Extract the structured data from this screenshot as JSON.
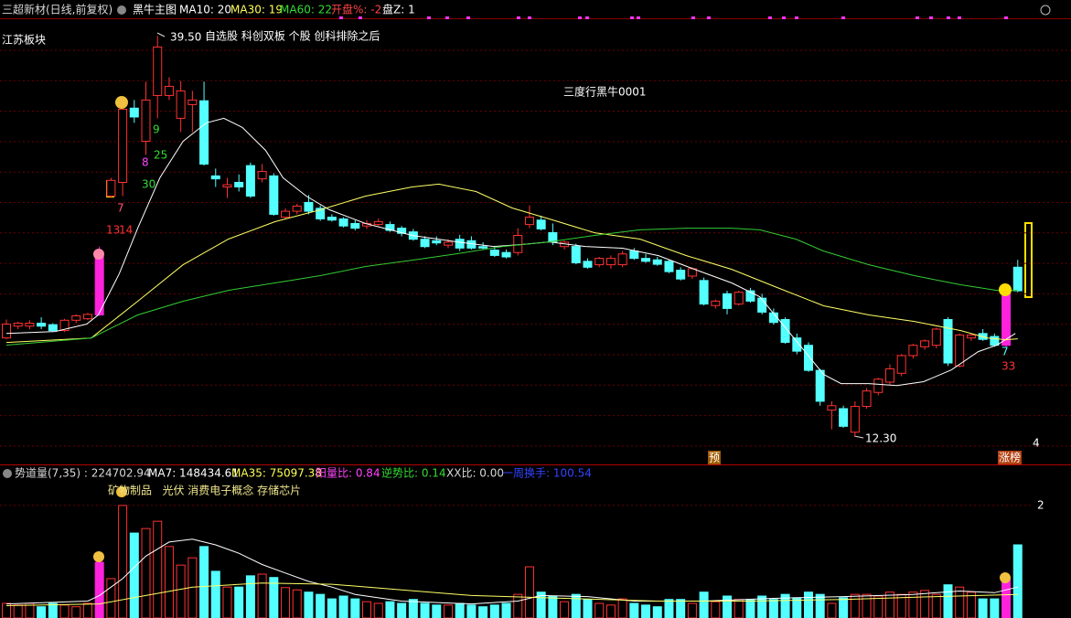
{
  "chart_data": [
    {
      "type": "candlestick",
      "header": [
        {
          "text": "三超新材(日线,前复权)",
          "color": "#d8d8d8"
        },
        {
          "text": "黑牛主图",
          "color": "#ffffff"
        },
        {
          "text": "MA10: 20",
          "color": "#ffffff"
        },
        {
          "text": "MA30: 19",
          "color": "#ffff55"
        },
        {
          "text": "MA60: 22",
          "color": "#33dd33"
        },
        {
          "text": "开盘%: -2",
          "color": "#ff4444"
        },
        {
          "text": "盘Z: 1",
          "color": "#ffffff"
        }
      ],
      "annotations": [
        "39.50",
        "自选股 科创双板 个股 创科排除之后",
        "三度行黑牛0001",
        "江苏板块",
        "7",
        "13",
        "14",
        "8",
        "9",
        "25",
        "30",
        "7",
        "33",
        "4",
        "12.30",
        "预",
        "涨榜"
      ],
      "ylim": [
        10.6,
        40.7
      ],
      "up_color": "#ff3232",
      "down_color": "#54ffff",
      "limit_up_color": "#ff22dd",
      "limit_up": [
        8,
        86
      ],
      "open": [
        19.0,
        19.8,
        19.8,
        20.0,
        19.9,
        19.5,
        20.2,
        20.3,
        20.56,
        28.63,
        29.56,
        34.6,
        32.35,
        35.46,
        35.46,
        33.91,
        34.84,
        35.1,
        30.0,
        29.25,
        29.56,
        30.7,
        29.8,
        30.0,
        27.2,
        27.6,
        28.2,
        27.8,
        27.2,
        27.08,
        26.77,
        26.6,
        26.7,
        26.7,
        26.45,
        26.2,
        25.7,
        25.6,
        25.3,
        25.7,
        25.6,
        25.2,
        24.96,
        24.8,
        24.8,
        26.7,
        27.0,
        26.15,
        25.2,
        25.21,
        24.2,
        23.97,
        23.97,
        23.97,
        24.9,
        24.4,
        24.3,
        24.2,
        23.6,
        23.2,
        22.9,
        21.2,
        22.0,
        21.3,
        22.2,
        21.7,
        20.7,
        20.25,
        19.0,
        18.5,
        16.8,
        14.1,
        14.2,
        12.6,
        14.35,
        15.3,
        16.0,
        16.6,
        17.8,
        18.4,
        18.5,
        20.25,
        17.1,
        19.0,
        19.3,
        19.1,
        18.5,
        23.8
      ],
      "high": [
        20.25,
        20.1,
        20.2,
        20.4,
        20.0,
        20.3,
        20.6,
        20.7,
        25.2,
        29.87,
        34.84,
        35.15,
        36.39,
        39.5,
        36.7,
        36.45,
        35.77,
        36.4,
        30.5,
        29.87,
        30.1,
        30.9,
        30.8,
        30.18,
        27.8,
        28.1,
        28.7,
        28.0,
        27.4,
        27.2,
        27.0,
        27.0,
        27.1,
        26.9,
        26.6,
        26.4,
        25.9,
        25.9,
        25.7,
        26.0,
        25.9,
        25.5,
        25.2,
        25.0,
        26.45,
        28.0,
        27.3,
        26.77,
        25.6,
        25.4,
        24.4,
        24.5,
        24.6,
        24.9,
        25.1,
        24.7,
        24.5,
        24.3,
        23.8,
        23.8,
        23.1,
        21.6,
        22.2,
        22.2,
        22.4,
        22.0,
        21.0,
        20.4,
        19.3,
        18.7,
        16.9,
        14.7,
        14.4,
        14.7,
        15.6,
        16.3,
        17.2,
        17.9,
        18.6,
        18.9,
        19.7,
        20.4,
        19.3,
        19.3,
        19.6,
        19.3,
        22.1,
        24.3
      ],
      "low": [
        18.9,
        19.6,
        19.6,
        19.6,
        19.4,
        19.4,
        20.0,
        20.2,
        20.5,
        28.5,
        28.63,
        33.6,
        31.42,
        33.91,
        35.15,
        32.98,
        32.98,
        30.7,
        29.25,
        28.5,
        28.94,
        28.5,
        29.56,
        27.3,
        27.08,
        27.4,
        27.39,
        26.95,
        26.9,
        26.5,
        26.3,
        26.4,
        26.6,
        26.2,
        25.9,
        25.6,
        25.1,
        25.3,
        25.1,
        24.9,
        25.0,
        25.0,
        24.5,
        24.4,
        24.6,
        26.45,
        26.3,
        25.3,
        25.0,
        24.0,
        23.7,
        23.8,
        23.7,
        23.8,
        24.3,
        24.1,
        23.9,
        23.4,
        22.9,
        23.0,
        21.2,
        21.0,
        20.6,
        21.2,
        21.4,
        20.6,
        19.9,
        18.6,
        17.9,
        16.7,
        14.4,
        12.8,
        12.9,
        12.3,
        14.2,
        15.1,
        15.8,
        16.4,
        17.6,
        18.2,
        18.3,
        17.1,
        17.0,
        18.8,
        18.8,
        18.4,
        18.4,
        22.1
      ],
      "close": [
        19.94,
        20.0,
        20.0,
        19.8,
        19.5,
        20.2,
        20.5,
        20.6,
        24.5,
        29.7,
        34.53,
        34.0,
        35.15,
        38.75,
        36.08,
        35.77,
        35.15,
        30.8,
        29.8,
        29.4,
        29.25,
        28.63,
        30.3,
        27.39,
        27.6,
        27.95,
        27.6,
        27.08,
        27.0,
        26.6,
        26.45,
        26.77,
        26.9,
        26.3,
        26.1,
        25.7,
        25.2,
        25.45,
        25.5,
        25.1,
        25.1,
        25.1,
        24.6,
        24.5,
        25.96,
        27.2,
        26.4,
        25.52,
        25.5,
        24.1,
        23.8,
        24.4,
        24.4,
        24.7,
        24.4,
        24.2,
        24.0,
        23.5,
        23.0,
        23.7,
        21.3,
        21.5,
        21.0,
        22.1,
        21.5,
        20.75,
        20.05,
        18.7,
        18.1,
        16.8,
        14.7,
        14.4,
        13.0,
        14.35,
        15.4,
        16.2,
        16.9,
        17.8,
        18.5,
        18.8,
        19.6,
        17.3,
        19.2,
        19.2,
        18.9,
        18.5,
        22.0,
        22.2
      ],
      "lines": [
        {
          "color": "#ffffff",
          "x": [
            0,
            4.2,
            6.9,
            7.9,
            9.7,
            11.3,
            13.2,
            15.2,
            17.2,
            18.7,
            20.3,
            22.3,
            23.8,
            25.8,
            27.8,
            30.9,
            34.9,
            38.8,
            41.9,
            44.3,
            46.7,
            49.8,
            53,
            56.1,
            59.2,
            62.4,
            64.8,
            67.1,
            68.7,
            70.3,
            71.8,
            74.2,
            76.6,
            78.9,
            81.3,
            83.6,
            85.2,
            86.8
          ],
          "values": [
            19.31,
            19.44,
            19.94,
            20.56,
            23.35,
            26.45,
            29.87,
            32.35,
            33.6,
            33.91,
            33.29,
            31.73,
            29.87,
            28.63,
            27.7,
            26.77,
            25.96,
            25.52,
            25.21,
            25.34,
            25.52,
            25.21,
            25.09,
            24.59,
            23.66,
            22.73,
            21.8,
            19.62,
            18.07,
            16.52,
            15.9,
            15.9,
            15.77,
            16.03,
            16.83,
            18.07,
            18.51,
            19.31
          ]
        },
        {
          "color": "#ffff66",
          "x": [
            0,
            7.3,
            11.3,
            15.2,
            19.1,
            23.1,
            27,
            30.9,
            34.9,
            37.2,
            40.4,
            43.5,
            46.7,
            50.6,
            54.5,
            58.5,
            62.4,
            66.3,
            70.3,
            74.2,
            78.1,
            82.1,
            84.4,
            86,
            87
          ],
          "values": [
            18.69,
            19.0,
            21.49,
            23.97,
            25.71,
            26.89,
            27.7,
            28.63,
            29.25,
            29.44,
            28.94,
            27.82,
            27.08,
            26.14,
            25.71,
            24.59,
            23.66,
            22.42,
            21.18,
            20.56,
            20.12,
            19.5,
            19.0,
            18.88,
            18.94
          ]
        },
        {
          "color": "#33cc33",
          "x": [
            0,
            7.3,
            11.3,
            15.2,
            19.1,
            23.1,
            27,
            30.9,
            34.9,
            38.8,
            42.7,
            46.7,
            50.6,
            54.5,
            58.5,
            62.4,
            64.8,
            67.9,
            70.3,
            74.2,
            78.1,
            82.1,
            85.2,
            87
          ],
          "values": [
            18.51,
            19.0,
            20.56,
            21.49,
            22.23,
            22.73,
            23.23,
            23.85,
            24.28,
            24.72,
            25.21,
            25.52,
            25.96,
            26.34,
            26.45,
            26.45,
            26.34,
            25.71,
            24.9,
            23.97,
            23.23,
            22.61,
            22.23,
            22.23
          ]
        }
      ]
    },
    {
      "type": "bar",
      "header": [
        {
          "text": "势道量(7,35) : 224702.94",
          "color": "#d8d8d8"
        },
        {
          "text": "MA7: 148434.61",
          "color": "#ffffff"
        },
        {
          "text": "MA35: 75097.38",
          "color": "#ffff55"
        },
        {
          "text": "阳量比: 0.84",
          "color": "#ff44ff"
        },
        {
          "text": "逆势比: 0.14",
          "color": "#33dd33"
        },
        {
          "text": "XX比: 0.00",
          "color": "#d8d8d8"
        },
        {
          "text": "一周换手: 100.54",
          "color": "#3344ff"
        }
      ],
      "sectors": "矿物制品   光伏 消费电子概念 存储芯片",
      "ylim": [
        0,
        2.6
      ],
      "yticks": [
        2
      ],
      "values": [
        0.26,
        0.23,
        0.26,
        0.2,
        0.26,
        0.23,
        0.2,
        0.26,
        0.99,
        0.7,
        2.0,
        1.51,
        1.59,
        1.72,
        1.27,
        0.94,
        1.07,
        1.27,
        0.83,
        0.55,
        0.55,
        0.75,
        0.78,
        0.72,
        0.54,
        0.5,
        0.46,
        0.42,
        0.34,
        0.39,
        0.34,
        0.29,
        0.26,
        0.29,
        0.26,
        0.33,
        0.26,
        0.23,
        0.23,
        0.26,
        0.23,
        0.2,
        0.23,
        0.26,
        0.42,
        0.91,
        0.46,
        0.39,
        0.29,
        0.42,
        0.33,
        0.26,
        0.23,
        0.34,
        0.26,
        0.23,
        0.2,
        0.33,
        0.33,
        0.26,
        0.46,
        0.29,
        0.39,
        0.33,
        0.33,
        0.39,
        0.33,
        0.42,
        0.36,
        0.46,
        0.42,
        0.26,
        0.36,
        0.42,
        0.42,
        0.39,
        0.46,
        0.42,
        0.46,
        0.49,
        0.42,
        0.59,
        0.55,
        0.46,
        0.34,
        0.34,
        0.72,
        1.3
      ],
      "lines": [
        {
          "color": "#ffffff",
          "x": [
            0,
            7,
            8,
            10,
            12,
            14,
            16,
            18,
            20,
            22,
            24,
            26,
            28,
            30,
            34,
            40,
            44,
            46,
            50,
            54,
            60,
            66,
            72,
            78,
            82,
            85,
            87
          ],
          "values": [
            0.25,
            0.3,
            0.4,
            0.7,
            1.1,
            1.35,
            1.4,
            1.3,
            1.15,
            0.95,
            0.8,
            0.65,
            0.55,
            0.42,
            0.3,
            0.25,
            0.3,
            0.4,
            0.38,
            0.3,
            0.3,
            0.35,
            0.38,
            0.42,
            0.48,
            0.45,
            0.55
          ]
        },
        {
          "color": "#ffff66",
          "x": [
            0,
            8,
            12,
            16,
            22,
            28,
            34,
            40,
            48,
            56,
            64,
            72,
            80,
            87
          ],
          "values": [
            0.22,
            0.25,
            0.4,
            0.55,
            0.62,
            0.6,
            0.5,
            0.4,
            0.35,
            0.3,
            0.3,
            0.33,
            0.38,
            0.42
          ]
        }
      ]
    }
  ]
}
